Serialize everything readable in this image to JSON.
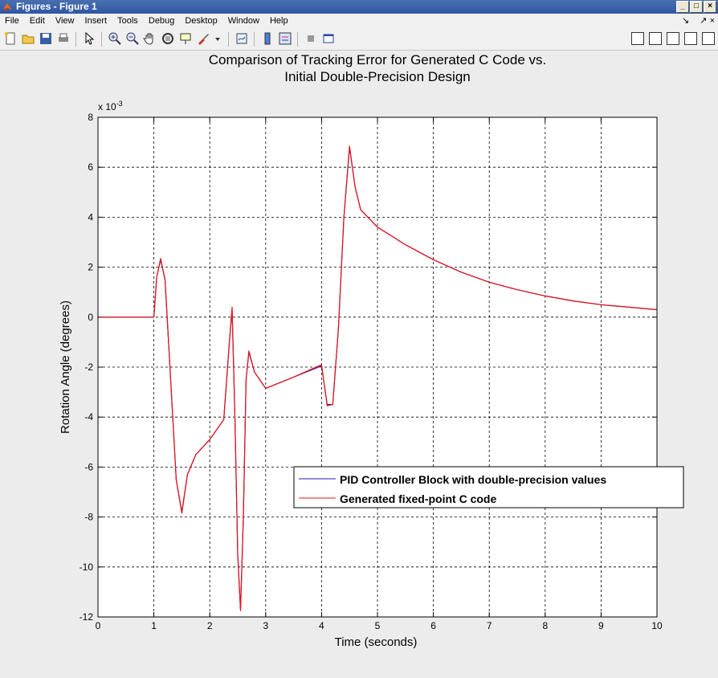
{
  "window": {
    "title": "Figures - Figure 1"
  },
  "menu": [
    "File",
    "Edit",
    "View",
    "Insert",
    "Tools",
    "Debug",
    "Desktop",
    "Window",
    "Help"
  ],
  "menu_right": [
    "↘",
    "↗ ×"
  ],
  "colors": {
    "series1": "#1f1fb4",
    "series2": "#ee1111",
    "titlebar": "#2f57a3"
  },
  "chart_data": {
    "type": "line",
    "title": [
      "Comparison of Tracking Error for Generated C Code vs.",
      "Initial Double-Precision Design"
    ],
    "xlabel": "Time (seconds)",
    "ylabel": "Rotation Angle (degrees)",
    "y_exponent_label": "x 10",
    "y_exponent_power": "-3",
    "xlim": [
      0,
      10
    ],
    "ylim": [
      -12,
      8
    ],
    "xticks": [
      "0",
      "1",
      "2",
      "3",
      "4",
      "5",
      "6",
      "7",
      "8",
      "9",
      "10"
    ],
    "yticks": [
      "8",
      "6",
      "4",
      "2",
      "0",
      "-2",
      "-4",
      "-6",
      "-8",
      "-10",
      "-12"
    ],
    "grid": true,
    "legend_position": "lower-right",
    "series": [
      {
        "name": "PID Controller Block with double-precision values",
        "x": [
          0,
          1,
          1.05,
          1.12,
          1.2,
          1.3,
          1.4,
          1.5,
          1.6,
          1.75,
          2,
          2.25,
          2.35,
          2.4,
          2.45,
          2.5,
          2.55,
          2.6,
          2.65,
          2.7,
          2.8,
          3,
          3.5,
          4,
          4.1,
          4.2,
          4.3,
          4.4,
          4.5,
          4.6,
          4.7,
          5,
          5.5,
          6,
          6.5,
          7,
          7.5,
          8,
          8.5,
          9,
          9.5,
          10
        ],
        "y": [
          0,
          0,
          1.6,
          2.3,
          1.5,
          -2.5,
          -6.5,
          -7.8,
          -6.3,
          -5.5,
          -4.9,
          -4.1,
          -1,
          0.3,
          -4,
          -9.5,
          -11.7,
          -8,
          -2.5,
          -1.4,
          -2.2,
          -2.85,
          -2.4,
          -1.95,
          -3.5,
          -3.5,
          -0.5,
          4,
          6.8,
          5.2,
          4.3,
          3.6,
          2.9,
          2.3,
          1.8,
          1.4,
          1.1,
          0.85,
          0.65,
          0.5,
          0.4,
          0.3
        ]
      },
      {
        "name": "Generated fixed-point C code",
        "x": [
          0,
          1,
          1.05,
          1.12,
          1.2,
          1.3,
          1.4,
          1.5,
          1.6,
          1.75,
          2,
          2.25,
          2.35,
          2.4,
          2.45,
          2.5,
          2.55,
          2.6,
          2.65,
          2.7,
          2.8,
          3,
          3.5,
          4,
          4.1,
          4.2,
          4.3,
          4.4,
          4.5,
          4.6,
          4.7,
          5,
          5.5,
          6,
          6.5,
          7,
          7.5,
          8,
          8.5,
          9,
          9.5,
          10
        ],
        "y": [
          0,
          0,
          1.6,
          2.35,
          1.5,
          -2.5,
          -6.5,
          -7.85,
          -6.3,
          -5.5,
          -4.9,
          -4.1,
          -1,
          0.4,
          -4,
          -9.5,
          -11.75,
          -8,
          -2.5,
          -1.35,
          -2.2,
          -2.85,
          -2.4,
          -1.9,
          -3.55,
          -3.5,
          -0.5,
          4,
          6.85,
          5.2,
          4.3,
          3.6,
          2.9,
          2.3,
          1.8,
          1.4,
          1.1,
          0.85,
          0.65,
          0.5,
          0.4,
          0.3
        ]
      }
    ]
  }
}
